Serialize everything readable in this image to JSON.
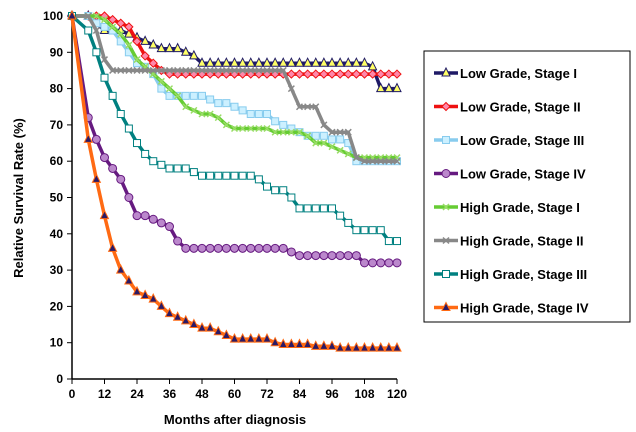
{
  "chart_data": {
    "type": "line",
    "title": "",
    "xlabel": "Months after diagnosis",
    "ylabel": "Relative Survival Rate (%)",
    "xlim": [
      0,
      120
    ],
    "ylim": [
      0,
      100
    ],
    "x_ticks": [
      0,
      12,
      24,
      36,
      48,
      60,
      72,
      84,
      96,
      108,
      120
    ],
    "y_ticks": [
      0,
      10,
      20,
      30,
      40,
      50,
      60,
      70,
      80,
      90,
      100
    ],
    "grid": false,
    "legend_position": "right",
    "series": [
      {
        "name": "Low Grade, Stage I",
        "line_color": "#1f1a66",
        "marker": "triangle",
        "marker_fill": "#ffff66",
        "points": [
          [
            0,
            100
          ],
          [
            6,
            100
          ],
          [
            12,
            96
          ],
          [
            15,
            96
          ],
          [
            18,
            96
          ],
          [
            21,
            95
          ],
          [
            24,
            94
          ],
          [
            27,
            93
          ],
          [
            30,
            92
          ],
          [
            33,
            91
          ],
          [
            36,
            91
          ],
          [
            39,
            91
          ],
          [
            42,
            90
          ],
          [
            45,
            89
          ],
          [
            48,
            87
          ],
          [
            51,
            87
          ],
          [
            54,
            87
          ],
          [
            57,
            87
          ],
          [
            60,
            87
          ],
          [
            63,
            87
          ],
          [
            66,
            87
          ],
          [
            69,
            87
          ],
          [
            72,
            87
          ],
          [
            75,
            87
          ],
          [
            78,
            87
          ],
          [
            81,
            87
          ],
          [
            84,
            87
          ],
          [
            87,
            87
          ],
          [
            90,
            87
          ],
          [
            93,
            87
          ],
          [
            96,
            87
          ],
          [
            99,
            87
          ],
          [
            102,
            87
          ],
          [
            105,
            87
          ],
          [
            108,
            87
          ],
          [
            111,
            86
          ],
          [
            114,
            80
          ],
          [
            117,
            80
          ],
          [
            120,
            80
          ]
        ]
      },
      {
        "name": "Low Grade, Stage II",
        "line_color": "#ee1111",
        "marker": "diamond",
        "marker_fill": "#ff88aa",
        "points": [
          [
            0,
            100
          ],
          [
            6,
            100
          ],
          [
            9,
            100
          ],
          [
            12,
            100
          ],
          [
            15,
            99
          ],
          [
            18,
            98
          ],
          [
            21,
            97
          ],
          [
            24,
            93
          ],
          [
            27,
            89
          ],
          [
            30,
            87
          ],
          [
            33,
            85
          ],
          [
            36,
            84
          ],
          [
            39,
            84
          ],
          [
            42,
            84
          ],
          [
            45,
            84
          ],
          [
            48,
            84
          ],
          [
            51,
            84
          ],
          [
            54,
            84
          ],
          [
            57,
            84
          ],
          [
            60,
            84
          ],
          [
            63,
            84
          ],
          [
            66,
            84
          ],
          [
            69,
            84
          ],
          [
            72,
            84
          ],
          [
            75,
            84
          ],
          [
            78,
            84
          ],
          [
            81,
            84
          ],
          [
            84,
            84
          ],
          [
            87,
            84
          ],
          [
            90,
            84
          ],
          [
            93,
            84
          ],
          [
            96,
            84
          ],
          [
            99,
            84
          ],
          [
            102,
            84
          ],
          [
            105,
            84
          ],
          [
            108,
            84
          ],
          [
            111,
            84
          ],
          [
            114,
            84
          ],
          [
            117,
            84
          ],
          [
            120,
            84
          ]
        ]
      },
      {
        "name": "Low Grade, Stage III",
        "line_color": "#88ccee",
        "marker": "square",
        "marker_fill": "#ccf0ff",
        "points": [
          [
            0,
            100
          ],
          [
            6,
            100
          ],
          [
            9,
            98
          ],
          [
            12,
            97
          ],
          [
            15,
            96
          ],
          [
            18,
            93
          ],
          [
            21,
            90
          ],
          [
            24,
            87
          ],
          [
            27,
            86
          ],
          [
            30,
            84
          ],
          [
            33,
            80
          ],
          [
            36,
            78
          ],
          [
            39,
            78
          ],
          [
            42,
            78
          ],
          [
            45,
            78
          ],
          [
            48,
            78
          ],
          [
            51,
            77
          ],
          [
            54,
            76
          ],
          [
            57,
            76
          ],
          [
            60,
            75
          ],
          [
            63,
            74
          ],
          [
            66,
            73
          ],
          [
            69,
            73
          ],
          [
            72,
            73
          ],
          [
            75,
            71
          ],
          [
            78,
            70
          ],
          [
            81,
            69
          ],
          [
            84,
            68
          ],
          [
            87,
            67
          ],
          [
            90,
            67
          ],
          [
            93,
            67
          ],
          [
            96,
            66
          ],
          [
            99,
            66
          ],
          [
            102,
            65
          ],
          [
            105,
            60
          ],
          [
            108,
            60
          ],
          [
            111,
            60
          ],
          [
            114,
            60
          ],
          [
            117,
            60
          ],
          [
            120,
            60
          ]
        ]
      },
      {
        "name": "Low Grade, Stage IV",
        "line_color": "#661a80",
        "marker": "circle",
        "marker_fill": "#bb88cc",
        "points": [
          [
            0,
            100
          ],
          [
            6,
            72
          ],
          [
            9,
            66
          ],
          [
            12,
            61
          ],
          [
            15,
            58
          ],
          [
            18,
            55
          ],
          [
            21,
            50
          ],
          [
            24,
            45
          ],
          [
            27,
            45
          ],
          [
            30,
            44
          ],
          [
            33,
            43
          ],
          [
            36,
            42
          ],
          [
            39,
            38
          ],
          [
            42,
            36
          ],
          [
            45,
            36
          ],
          [
            48,
            36
          ],
          [
            51,
            36
          ],
          [
            54,
            36
          ],
          [
            57,
            36
          ],
          [
            60,
            36
          ],
          [
            63,
            36
          ],
          [
            66,
            36
          ],
          [
            69,
            36
          ],
          [
            72,
            36
          ],
          [
            75,
            36
          ],
          [
            78,
            36
          ],
          [
            81,
            35
          ],
          [
            84,
            34
          ],
          [
            87,
            34
          ],
          [
            90,
            34
          ],
          [
            93,
            34
          ],
          [
            96,
            34
          ],
          [
            99,
            34
          ],
          [
            102,
            34
          ],
          [
            105,
            34
          ],
          [
            108,
            32
          ],
          [
            111,
            32
          ],
          [
            114,
            32
          ],
          [
            117,
            32
          ],
          [
            120,
            32
          ]
        ]
      },
      {
        "name": "High Grade, Stage I",
        "line_color": "#66cc33",
        "marker": "x",
        "marker_fill": "#99dd66",
        "points": [
          [
            0,
            100
          ],
          [
            6,
            100
          ],
          [
            9,
            100
          ],
          [
            12,
            99
          ],
          [
            15,
            97
          ],
          [
            18,
            95
          ],
          [
            21,
            92
          ],
          [
            24,
            88
          ],
          [
            27,
            86
          ],
          [
            30,
            84
          ],
          [
            33,
            82
          ],
          [
            36,
            80
          ],
          [
            39,
            78
          ],
          [
            42,
            75
          ],
          [
            45,
            74
          ],
          [
            48,
            73
          ],
          [
            51,
            73
          ],
          [
            54,
            72
          ],
          [
            57,
            70
          ],
          [
            60,
            69
          ],
          [
            63,
            69
          ],
          [
            66,
            69
          ],
          [
            69,
            69
          ],
          [
            72,
            69
          ],
          [
            75,
            68
          ],
          [
            78,
            68
          ],
          [
            81,
            68
          ],
          [
            84,
            68
          ],
          [
            87,
            67
          ],
          [
            90,
            65
          ],
          [
            93,
            65
          ],
          [
            96,
            64
          ],
          [
            99,
            63
          ],
          [
            102,
            62
          ],
          [
            105,
            61
          ],
          [
            108,
            61
          ],
          [
            111,
            61
          ],
          [
            114,
            61
          ],
          [
            117,
            61
          ],
          [
            120,
            61
          ]
        ]
      },
      {
        "name": "High Grade, Stage II",
        "line_color": "#888888",
        "marker": "x",
        "marker_fill": "#888888",
        "points": [
          [
            0,
            100
          ],
          [
            6,
            100
          ],
          [
            9,
            96
          ],
          [
            12,
            88
          ],
          [
            15,
            85
          ],
          [
            18,
            85
          ],
          [
            21,
            85
          ],
          [
            24,
            85
          ],
          [
            27,
            85
          ],
          [
            30,
            85
          ],
          [
            33,
            85
          ],
          [
            36,
            85
          ],
          [
            39,
            85
          ],
          [
            42,
            85
          ],
          [
            45,
            85
          ],
          [
            48,
            85
          ],
          [
            51,
            85
          ],
          [
            54,
            85
          ],
          [
            57,
            85
          ],
          [
            60,
            85
          ],
          [
            63,
            85
          ],
          [
            66,
            85
          ],
          [
            69,
            85
          ],
          [
            72,
            85
          ],
          [
            75,
            85
          ],
          [
            78,
            85
          ],
          [
            81,
            80
          ],
          [
            84,
            75
          ],
          [
            87,
            75
          ],
          [
            90,
            75
          ],
          [
            93,
            70
          ],
          [
            96,
            68
          ],
          [
            99,
            68
          ],
          [
            102,
            68
          ],
          [
            105,
            61
          ],
          [
            108,
            60
          ],
          [
            111,
            60
          ],
          [
            114,
            60
          ],
          [
            117,
            60
          ],
          [
            120,
            60
          ]
        ]
      },
      {
        "name": "High Grade, Stage III",
        "line_color": "#008080",
        "marker": "square",
        "marker_fill": "#ffffff",
        "points": [
          [
            0,
            100
          ],
          [
            6,
            96
          ],
          [
            9,
            90
          ],
          [
            12,
            83
          ],
          [
            15,
            78
          ],
          [
            18,
            73
          ],
          [
            21,
            69
          ],
          [
            24,
            65
          ],
          [
            27,
            62
          ],
          [
            30,
            60
          ],
          [
            33,
            59
          ],
          [
            36,
            58
          ],
          [
            39,
            58
          ],
          [
            42,
            58
          ],
          [
            45,
            57
          ],
          [
            48,
            56
          ],
          [
            51,
            56
          ],
          [
            54,
            56
          ],
          [
            57,
            56
          ],
          [
            60,
            56
          ],
          [
            63,
            56
          ],
          [
            66,
            56
          ],
          [
            69,
            55
          ],
          [
            72,
            53
          ],
          [
            75,
            52
          ],
          [
            78,
            52
          ],
          [
            81,
            50
          ],
          [
            84,
            47
          ],
          [
            87,
            47
          ],
          [
            90,
            47
          ],
          [
            93,
            47
          ],
          [
            96,
            47
          ],
          [
            99,
            45
          ],
          [
            102,
            43
          ],
          [
            105,
            41
          ],
          [
            108,
            41
          ],
          [
            111,
            41
          ],
          [
            114,
            41
          ],
          [
            117,
            38
          ],
          [
            120,
            38
          ]
        ]
      },
      {
        "name": "High Grade, Stage IV",
        "line_color": "#ff6a13",
        "marker": "triangle",
        "marker_fill": "#2b1a66",
        "points": [
          [
            0,
            100
          ],
          [
            6,
            66
          ],
          [
            9,
            55
          ],
          [
            12,
            45
          ],
          [
            15,
            36
          ],
          [
            18,
            30
          ],
          [
            21,
            27
          ],
          [
            24,
            24
          ],
          [
            27,
            23
          ],
          [
            30,
            22
          ],
          [
            33,
            20
          ],
          [
            36,
            18
          ],
          [
            39,
            17
          ],
          [
            42,
            16
          ],
          [
            45,
            15
          ],
          [
            48,
            14
          ],
          [
            51,
            14
          ],
          [
            54,
            13
          ],
          [
            57,
            12
          ],
          [
            60,
            11
          ],
          [
            63,
            11
          ],
          [
            66,
            11
          ],
          [
            69,
            11
          ],
          [
            72,
            11
          ],
          [
            75,
            10
          ],
          [
            78,
            9.5
          ],
          [
            81,
            9.5
          ],
          [
            84,
            9.5
          ],
          [
            87,
            9.5
          ],
          [
            90,
            9
          ],
          [
            93,
            9
          ],
          [
            96,
            9
          ],
          [
            99,
            8.5
          ],
          [
            102,
            8.5
          ],
          [
            105,
            8.5
          ],
          [
            108,
            8.5
          ],
          [
            111,
            8.5
          ],
          [
            114,
            8.5
          ],
          [
            117,
            8.5
          ],
          [
            120,
            8.5
          ]
        ]
      }
    ]
  }
}
